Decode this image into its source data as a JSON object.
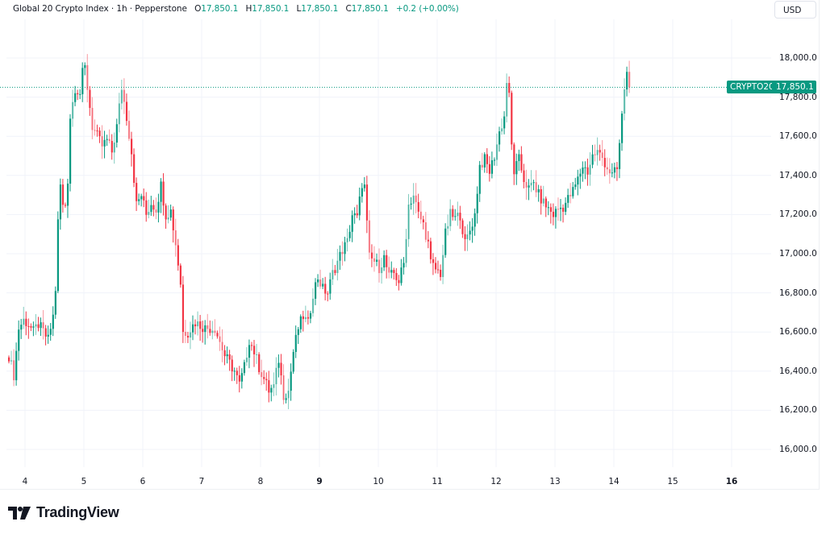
{
  "legend": {
    "symbol_name": "Global 20 Crypto Index",
    "interval": "1h",
    "source": "Pepperstone",
    "open_label": "O",
    "open": "17,850.1",
    "high_label": "H",
    "high": "17,850.1",
    "low_label": "L",
    "low": "17,850.1",
    "close_label": "C",
    "close": "17,850.1",
    "change": "+0.2 (+0.00%)"
  },
  "currency_button": "USD",
  "last_price": {
    "symbol": "CRYPTO20",
    "value": "17,850.1",
    "color": "#089981"
  },
  "branding": {
    "logo_text": "TradingView"
  },
  "colors": {
    "up": "#089981",
    "down": "#F23645",
    "grid": "#f0f3fa",
    "text": "#131722"
  },
  "chart_data": {
    "type": "candlestick",
    "title": "Global 20 Crypto Index · 1h · Pepperstone",
    "xlabel": "",
    "ylabel": "USD",
    "ylim": [
      15920,
      18280
    ],
    "grid": true,
    "y_ticks": [
      "18,000.0",
      "17,800.0",
      "17,600.0",
      "17,400.0",
      "17,200.0",
      "17,000.0",
      "16,800.0",
      "16,600.0",
      "16,400.0",
      "16,200.0",
      "16,000.0"
    ],
    "y_tick_values": [
      18000,
      17800,
      17600,
      17400,
      17200,
      17000,
      16800,
      16600,
      16400,
      16200,
      16000
    ],
    "x_ticks": [
      "4",
      "5",
      "6",
      "7",
      "8",
      "9",
      "10",
      "11",
      "12",
      "13",
      "14",
      "15",
      "16"
    ],
    "x_tick_bold": [
      "9",
      "16"
    ],
    "last_value": 17850.1,
    "waypoints_close": [
      [
        0,
        16480
      ],
      [
        2,
        16380
      ],
      [
        4,
        16620
      ],
      [
        6,
        16660
      ],
      [
        8,
        16640
      ],
      [
        10,
        16600
      ],
      [
        12,
        16640
      ],
      [
        14,
        16600
      ],
      [
        16,
        16560
      ],
      [
        18,
        16680
      ],
      [
        19,
        16820
      ],
      [
        20,
        17160
      ],
      [
        21,
        17350
      ],
      [
        22,
        17240
      ],
      [
        23,
        17250
      ],
      [
        24,
        17380
      ],
      [
        25,
        17700
      ],
      [
        27,
        17850
      ],
      [
        29,
        17820
      ],
      [
        30,
        17920
      ],
      [
        31,
        17950
      ],
      [
        32,
        17850
      ],
      [
        34,
        17650
      ],
      [
        36,
        17600
      ],
      [
        38,
        17550
      ],
      [
        40,
        17580
      ],
      [
        42,
        17520
      ],
      [
        44,
        17650
      ],
      [
        46,
        17850
      ],
      [
        48,
        17700
      ],
      [
        50,
        17520
      ],
      [
        52,
        17250
      ],
      [
        54,
        17300
      ],
      [
        56,
        17200
      ],
      [
        58,
        17260
      ],
      [
        60,
        17230
      ],
      [
        62,
        17350
      ],
      [
        64,
        17200
      ],
      [
        66,
        17220
      ],
      [
        68,
        17050
      ],
      [
        70,
        16850
      ],
      [
        71,
        16600
      ],
      [
        73,
        16600
      ],
      [
        76,
        16650
      ],
      [
        80,
        16620
      ],
      [
        84,
        16620
      ],
      [
        86,
        16550
      ],
      [
        88,
        16480
      ],
      [
        90,
        16440
      ],
      [
        92,
        16400
      ],
      [
        94,
        16330
      ],
      [
        96,
        16420
      ],
      [
        98,
        16560
      ],
      [
        100,
        16500
      ],
      [
        102,
        16420
      ],
      [
        104,
        16360
      ],
      [
        106,
        16300
      ],
      [
        108,
        16320
      ],
      [
        110,
        16460
      ],
      [
        112,
        16280
      ],
      [
        114,
        16300
      ],
      [
        116,
        16500
      ],
      [
        118,
        16620
      ],
      [
        120,
        16680
      ],
      [
        122,
        16640
      ],
      [
        124,
        16800
      ],
      [
        126,
        16880
      ],
      [
        128,
        16820
      ],
      [
        130,
        16800
      ],
      [
        132,
        16900
      ],
      [
        134,
        16960
      ],
      [
        136,
        17020
      ],
      [
        138,
        17060
      ],
      [
        140,
        17200
      ],
      [
        142,
        17180
      ],
      [
        144,
        17360
      ],
      [
        145,
        17340
      ],
      [
        146,
        17150
      ],
      [
        147,
        16980
      ],
      [
        149,
        16960
      ],
      [
        151,
        16930
      ],
      [
        153,
        16980
      ],
      [
        155,
        16880
      ],
      [
        157,
        16900
      ],
      [
        159,
        16860
      ],
      [
        161,
        16950
      ],
      [
        163,
        17250
      ],
      [
        165,
        17300
      ],
      [
        167,
        17200
      ],
      [
        169,
        17150
      ],
      [
        171,
        17050
      ],
      [
        172,
        16950
      ],
      [
        174,
        16920
      ],
      [
        176,
        16900
      ],
      [
        178,
        17100
      ],
      [
        180,
        17200
      ],
      [
        182,
        17180
      ],
      [
        184,
        17200
      ],
      [
        186,
        17050
      ],
      [
        188,
        17120
      ],
      [
        190,
        17200
      ],
      [
        192,
        17450
      ],
      [
        194,
        17480
      ],
      [
        196,
        17420
      ],
      [
        198,
        17500
      ],
      [
        200,
        17620
      ],
      [
        202,
        17700
      ],
      [
        203,
        17880
      ],
      [
        204,
        17800
      ],
      [
        205,
        17550
      ],
      [
        206,
        17420
      ],
      [
        208,
        17480
      ],
      [
        210,
        17380
      ],
      [
        212,
        17330
      ],
      [
        214,
        17360
      ],
      [
        216,
        17300
      ],
      [
        218,
        17260
      ],
      [
        220,
        17230
      ],
      [
        222,
        17200
      ],
      [
        224,
        17230
      ],
      [
        226,
        17240
      ],
      [
        228,
        17280
      ],
      [
        230,
        17320
      ],
      [
        232,
        17380
      ],
      [
        234,
        17450
      ],
      [
        236,
        17420
      ],
      [
        238,
        17500
      ],
      [
        240,
        17520
      ],
      [
        242,
        17490
      ],
      [
        244,
        17440
      ],
      [
        246,
        17400
      ],
      [
        248,
        17430
      ],
      [
        249,
        17560
      ],
      [
        250,
        17700
      ],
      [
        251,
        17850
      ],
      [
        252,
        17920
      ],
      [
        253,
        17850.1
      ]
    ],
    "candle_spacing_px": 3.04,
    "first_candle_x": 10
  }
}
